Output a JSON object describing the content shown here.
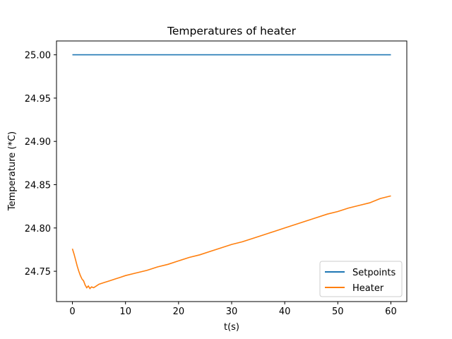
{
  "chart_data": {
    "type": "line",
    "title": "Temperatures of heater",
    "xlabel": "t(s)",
    "ylabel": "Temperature (*C)",
    "xlim": [
      -3,
      63
    ],
    "ylim": [
      24.715,
      25.016
    ],
    "xticks": [
      0,
      10,
      20,
      30,
      40,
      50,
      60
    ],
    "yticks": [
      24.75,
      24.8,
      24.85,
      24.9,
      24.95,
      25.0
    ],
    "ytick_labels": [
      "24.75",
      "24.80",
      "24.85",
      "24.90",
      "24.95",
      "25.00"
    ],
    "grid": false,
    "legend_position": "lower-right",
    "series": [
      {
        "name": "Setpoints",
        "color": "#1f77b4",
        "points": [
          [
            0,
            25.0
          ],
          [
            60,
            25.0
          ]
        ]
      },
      {
        "name": "Heater",
        "color": "#ff7f0e",
        "points": [
          [
            0.0,
            24.776
          ],
          [
            0.3,
            24.77
          ],
          [
            0.6,
            24.763
          ],
          [
            0.9,
            24.756
          ],
          [
            1.2,
            24.75
          ],
          [
            1.5,
            24.745
          ],
          [
            1.8,
            24.741
          ],
          [
            2.1,
            24.739
          ],
          [
            2.4,
            24.734
          ],
          [
            2.7,
            24.731
          ],
          [
            3.0,
            24.733
          ],
          [
            3.3,
            24.73
          ],
          [
            3.6,
            24.732
          ],
          [
            4.0,
            24.731
          ],
          [
            4.5,
            24.733
          ],
          [
            5.0,
            24.735
          ],
          [
            6.0,
            24.737
          ],
          [
            7.0,
            24.739
          ],
          [
            8.0,
            24.741
          ],
          [
            9.0,
            24.743
          ],
          [
            10.0,
            24.745
          ],
          [
            12.0,
            24.748
          ],
          [
            14.0,
            24.751
          ],
          [
            16.0,
            24.755
          ],
          [
            18.0,
            24.758
          ],
          [
            20.0,
            24.762
          ],
          [
            22.0,
            24.766
          ],
          [
            24.0,
            24.769
          ],
          [
            26.0,
            24.773
          ],
          [
            28.0,
            24.777
          ],
          [
            30.0,
            24.781
          ],
          [
            32.0,
            24.784
          ],
          [
            34.0,
            24.788
          ],
          [
            36.0,
            24.792
          ],
          [
            38.0,
            24.796
          ],
          [
            40.0,
            24.8
          ],
          [
            42.0,
            24.804
          ],
          [
            44.0,
            24.808
          ],
          [
            46.0,
            24.812
          ],
          [
            48.0,
            24.816
          ],
          [
            50.0,
            24.819
          ],
          [
            52.0,
            24.823
          ],
          [
            54.0,
            24.826
          ],
          [
            56.0,
            24.829
          ],
          [
            58.0,
            24.834
          ],
          [
            60.0,
            24.837
          ]
        ]
      }
    ]
  }
}
